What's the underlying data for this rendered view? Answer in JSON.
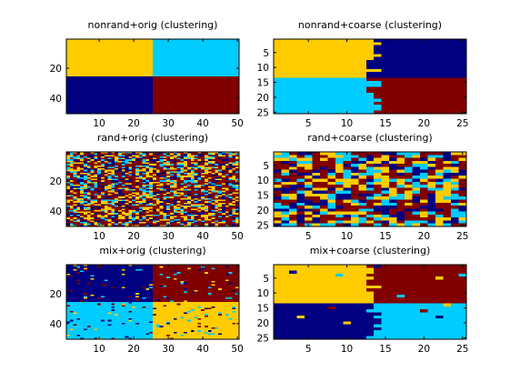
{
  "figure": {
    "background": "#ffffff"
  },
  "colors": {
    "red": "#800000",
    "navy": "#000080",
    "cyan": "#00ccff",
    "gold": "#ffcc00",
    "axis": "#000000"
  },
  "chart_data": [
    {
      "type": "heatmap",
      "title": "nonrand+orig (clustering)",
      "variant": "nonrand",
      "grid": {
        "rows": 50,
        "cols": 50
      },
      "quadrants": {
        "top_left": "gold",
        "top_right": "cyan",
        "bottom_left": "navy",
        "bottom_right": "red"
      },
      "noise": 0,
      "xticks": [
        10,
        20,
        30,
        40,
        50
      ],
      "yticks": [
        20,
        40
      ],
      "xlim": [
        0.5,
        50.5
      ],
      "ylim": [
        0.5,
        50.5
      ]
    },
    {
      "type": "heatmap",
      "title": "nonrand+coarse (clustering)",
      "variant": "nonrand",
      "grid": {
        "rows": 25,
        "cols": 25
      },
      "quadrants": {
        "top_left": "gold",
        "top_right": "navy",
        "bottom_left": "cyan",
        "bottom_right": "red"
      },
      "noise": 0,
      "boundary_jitter": true,
      "xticks": [
        5,
        10,
        15,
        20,
        25
      ],
      "yticks": [
        5,
        10,
        15,
        20,
        25
      ],
      "xlim": [
        0.5,
        25.5
      ],
      "ylim": [
        0.5,
        25.5
      ]
    },
    {
      "type": "heatmap",
      "title": "rand+orig (clustering)",
      "variant": "random",
      "grid": {
        "rows": 50,
        "cols": 50
      },
      "palette": [
        "red",
        "gold",
        "cyan",
        "navy"
      ],
      "weights": [
        0.45,
        0.25,
        0.15,
        0.15
      ],
      "xticks": [
        10,
        20,
        30,
        40,
        50
      ],
      "yticks": [
        20,
        40
      ],
      "xlim": [
        0.5,
        50.5
      ],
      "ylim": [
        0.5,
        50.5
      ]
    },
    {
      "type": "heatmap",
      "title": "rand+coarse (clustering)",
      "variant": "random",
      "grid": {
        "rows": 25,
        "cols": 25
      },
      "palette": [
        "red",
        "gold",
        "cyan",
        "navy"
      ],
      "weights": [
        0.35,
        0.25,
        0.2,
        0.2
      ],
      "xticks": [
        5,
        10,
        15,
        20,
        25
      ],
      "yticks": [
        5,
        10,
        15,
        20,
        25
      ],
      "xlim": [
        0.5,
        25.5
      ],
      "ylim": [
        0.5,
        25.5
      ]
    },
    {
      "type": "heatmap",
      "title": "mix+orig (clustering)",
      "variant": "mix",
      "grid": {
        "rows": 50,
        "cols": 50
      },
      "quadrants": {
        "top_left": "navy",
        "top_right": "red",
        "bottom_left": "cyan",
        "bottom_right": "gold"
      },
      "noise": 0.06,
      "xticks": [
        10,
        20,
        30,
        40,
        50
      ],
      "yticks": [
        20,
        40
      ],
      "xlim": [
        0.5,
        50.5
      ],
      "ylim": [
        0.5,
        50.5
      ]
    },
    {
      "type": "heatmap",
      "title": "mix+coarse (clustering)",
      "variant": "mix",
      "grid": {
        "rows": 25,
        "cols": 25
      },
      "quadrants": {
        "top_left": "gold",
        "top_right": "red",
        "bottom_left": "navy",
        "bottom_right": "cyan"
      },
      "noise": 0.02,
      "boundary_jitter": true,
      "xticks": [
        5,
        10,
        15,
        20,
        25
      ],
      "yticks": [
        5,
        10,
        15,
        20,
        25
      ],
      "xlim": [
        0.5,
        25.5
      ],
      "ylim": [
        0.5,
        25.5
      ]
    }
  ]
}
